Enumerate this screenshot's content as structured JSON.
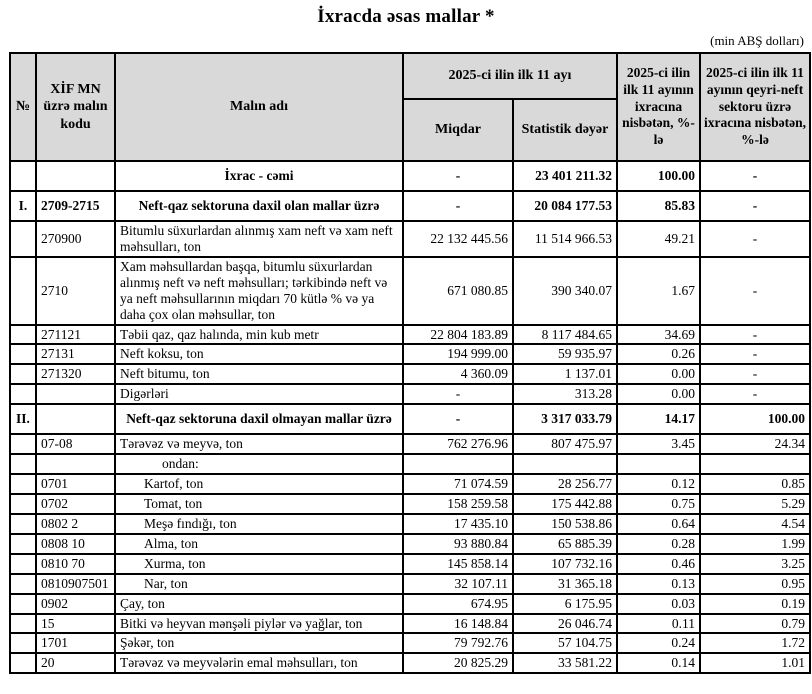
{
  "page": {
    "title": "İxracda əsas mallar *",
    "unit_note": "(min ABŞ dolları)"
  },
  "table": {
    "headers": {
      "num": "№",
      "code": "XİF MN üzrə malın kodu",
      "name": "Malın adı",
      "period_group": "2025-ci ilin ilk 11 ayı",
      "quantity": "Miqdar",
      "stat_value": "Statistik dəyər",
      "pct_total": "2025-ci ilin ilk 11 ayının ixracına nisbətən, %-lə",
      "pct_nonoil": "2025-ci ilin ilk 11 ayının qeyri-neft sektoru üzrə ixracına nisbətən, %-lə"
    },
    "colors": {
      "header_bg": "#d9d9d9",
      "border": "#000000",
      "text": "#000000"
    },
    "rows": [
      {
        "num": "",
        "code": "",
        "name": "İxrac - cəmi",
        "quantity": "-",
        "stat_value": "23 401 211.32",
        "pct_total": "100.00",
        "pct_nonoil": "-",
        "bold": true,
        "name_align": "center"
      },
      {
        "num": "I.",
        "code": "2709-2715",
        "name": "Neft-qaz sektoruna daxil olan mallar üzrə",
        "quantity": "-",
        "stat_value": "20 084 177.53",
        "pct_total": "85.83",
        "pct_nonoil": "-",
        "bold": true,
        "name_align": "center"
      },
      {
        "num": "",
        "code": "270900",
        "name": "Bitumlu süxurlardan alınmış xam neft və xam neft məhsulları, ton",
        "quantity": "22 132 445.56",
        "stat_value": "11 514 966.53",
        "pct_total": "49.21",
        "pct_nonoil": "-"
      },
      {
        "num": "",
        "code": "2710",
        "name": "Xam məhsullardan başqa, bitumlu süxurlardan alınmış neft və neft məhsulları; tərkibində neft və ya neft məhsullarının miqdarı 70 kütlə % və ya daha çox olan məhsullar, ton",
        "quantity": "671 080.85",
        "stat_value": "390 340.07",
        "pct_total": "1.67",
        "pct_nonoil": "-"
      },
      {
        "num": "",
        "code": "271121",
        "name": "Təbii qaz, qaz halında, min kub metr",
        "quantity": "22 804 183.89",
        "stat_value": "8 117 484.65",
        "pct_total": "34.69",
        "pct_nonoil": "-"
      },
      {
        "num": "",
        "code": "27131",
        "name": "Neft koksu, ton",
        "quantity": "194 999.00",
        "stat_value": "59 935.97",
        "pct_total": "0.26",
        "pct_nonoil": "-"
      },
      {
        "num": "",
        "code": "271320",
        "name": "Neft bitumu, ton",
        "quantity": "4 360.09",
        "stat_value": "1 137.01",
        "pct_total": "0.00",
        "pct_nonoil": "-"
      },
      {
        "num": "",
        "code": "",
        "name": "Digərləri",
        "quantity": "-",
        "stat_value": "313.28",
        "pct_total": "0.00",
        "pct_nonoil": "-"
      },
      {
        "num": "II.",
        "code": "",
        "name": "Neft-qaz sektoruna daxil olmayan mallar üzrə",
        "quantity": "-",
        "stat_value": "3 317 033.79",
        "pct_total": "14.17",
        "pct_nonoil": "100.00",
        "bold": true,
        "name_align": "center"
      },
      {
        "num": "",
        "code": "07-08",
        "name": "Tərəvəz və meyvə, ton",
        "quantity": "762 276.96",
        "stat_value": "807 475.97",
        "pct_total": "3.45",
        "pct_nonoil": "24.34"
      },
      {
        "num": "",
        "code": "",
        "name": "ondan:",
        "quantity": "",
        "stat_value": "",
        "pct_total": "",
        "pct_nonoil": "",
        "indent": 2
      },
      {
        "num": "",
        "code": "0701",
        "name": "Kartof, ton",
        "quantity": "71 074.59",
        "stat_value": "28 256.77",
        "pct_total": "0.12",
        "pct_nonoil": "0.85",
        "indent": 1
      },
      {
        "num": "",
        "code": "0702",
        "name": "Tomat, ton",
        "quantity": "158 259.58",
        "stat_value": "175 442.88",
        "pct_total": "0.75",
        "pct_nonoil": "5.29",
        "indent": 1
      },
      {
        "num": "",
        "code": "0802 2",
        "name": "Meşə fındığı, ton",
        "quantity": "17 435.10",
        "stat_value": "150 538.86",
        "pct_total": "0.64",
        "pct_nonoil": "4.54",
        "indent": 1
      },
      {
        "num": "",
        "code": "0808 10",
        "name": "Alma, ton",
        "quantity": "93 880.84",
        "stat_value": "65 885.39",
        "pct_total": "0.28",
        "pct_nonoil": "1.99",
        "indent": 1
      },
      {
        "num": "",
        "code": "0810 70",
        "name": "Xurma, ton",
        "quantity": "145 858.14",
        "stat_value": "107 732.16",
        "pct_total": "0.46",
        "pct_nonoil": "3.25",
        "indent": 1
      },
      {
        "num": "",
        "code": "0810907501",
        "name": "Nar, ton",
        "quantity": "32 107.11",
        "stat_value": "31 365.18",
        "pct_total": "0.13",
        "pct_nonoil": "0.95",
        "indent": 1
      },
      {
        "num": "",
        "code": "0902",
        "name": "Çay, ton",
        "quantity": "674.95",
        "stat_value": "6 175.95",
        "pct_total": "0.03",
        "pct_nonoil": "0.19"
      },
      {
        "num": "",
        "code": "15",
        "name": "Bitki və heyvan mənşəli piylər və yağlar, ton",
        "quantity": "16 148.84",
        "stat_value": "26 046.74",
        "pct_total": "0.11",
        "pct_nonoil": "0.79"
      },
      {
        "num": "",
        "code": "1701",
        "name": "Şəkər, ton",
        "quantity": "79 792.76",
        "stat_value": "57 104.75",
        "pct_total": "0.24",
        "pct_nonoil": "1.72"
      },
      {
        "num": "",
        "code": "20",
        "name": "Tərəvəz və meyvələrin emal məhsulları, ton",
        "quantity": "20 825.29",
        "stat_value": "33 581.22",
        "pct_total": "0.14",
        "pct_nonoil": "1.01"
      }
    ]
  }
}
